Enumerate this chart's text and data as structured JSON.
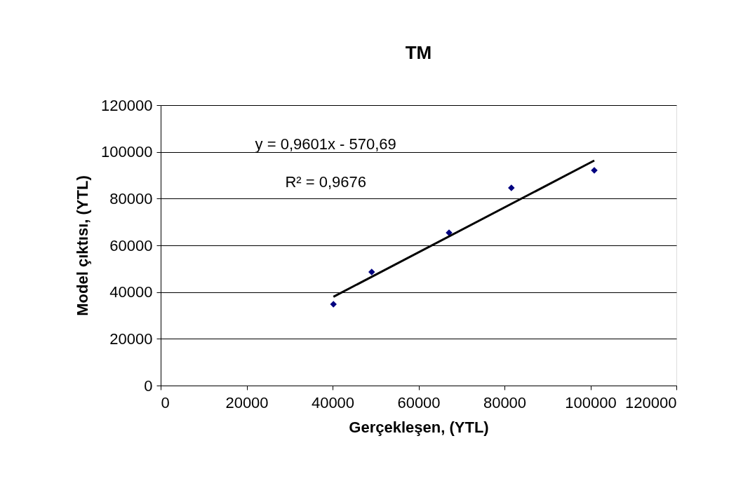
{
  "chart_data": {
    "type": "scatter",
    "title": "TM",
    "xlabel": "Gerçekleşen, (YTL)",
    "ylabel": "Model çıktısı, (YTL)",
    "xlim": [
      0,
      120000
    ],
    "xticks": [
      0,
      20000,
      40000,
      60000,
      80000,
      100000,
      120000
    ],
    "ylim": [
      0,
      120000
    ],
    "yticks": [
      0,
      20000,
      40000,
      60000,
      80000,
      100000,
      120000
    ],
    "grid": "y",
    "marker": "diamond",
    "series": [
      {
        "color": "#000080",
        "x": [
          40200,
          49100,
          67100,
          81600,
          100900
        ],
        "values": [
          34800,
          48600,
          65400,
          84600,
          92100
        ]
      },
      {
        "type": "line",
        "marker": "none",
        "color": "#000000",
        "x": [
          40200,
          100900
        ],
        "values": [
          38000,
          96300
        ]
      }
    ],
    "annotations": [
      "y = 0,9601x - 570,69",
      "R² = 0,9676"
    ]
  }
}
